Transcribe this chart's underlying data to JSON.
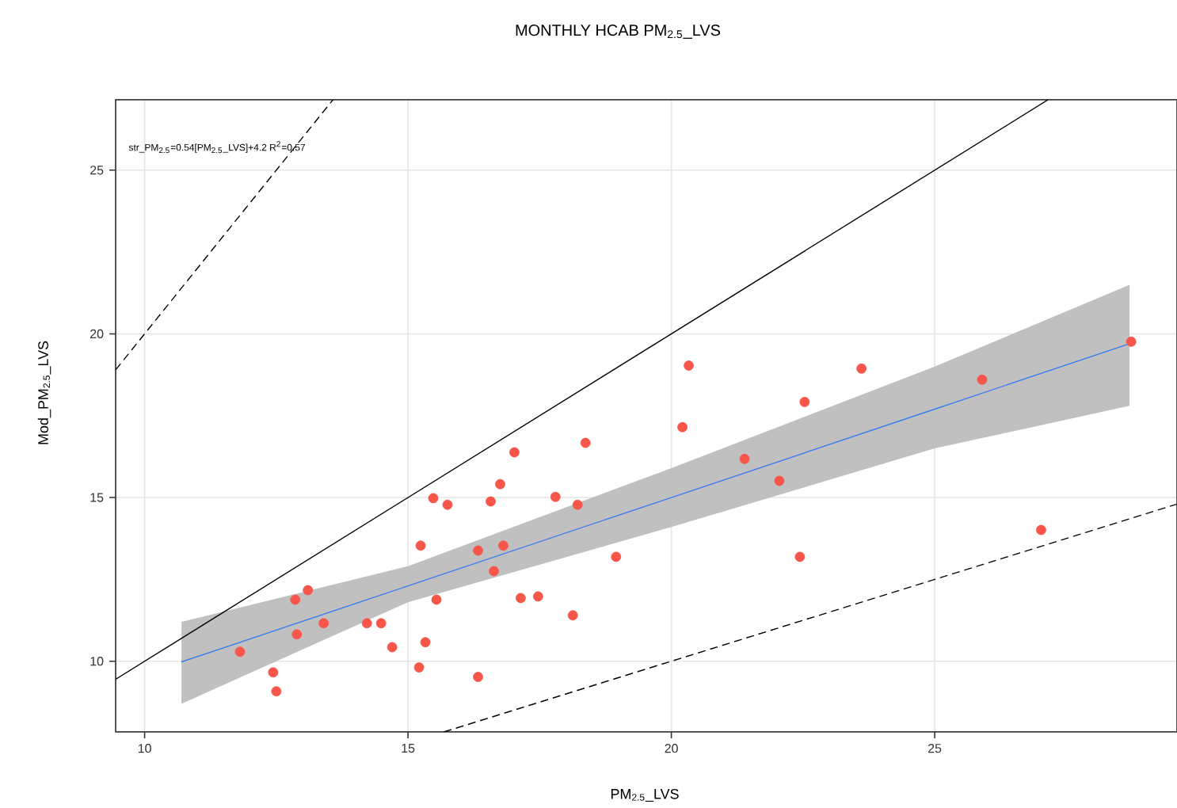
{
  "chart_data": {
    "type": "scatter",
    "title": "MONTHLY  HCAB  PM$_{2.5}$_LVS",
    "xlabel": "PM$_{2.5}$_LVS",
    "ylabel": "Mod_PM$_{2.5}$_LVS",
    "annotations": [
      "str_PM$_{2.5}$=0.54[PM$_{2.5}$_LVS]+4.2 R$^{2}$=0.57"
    ],
    "xlim": [
      9.45,
      29.6
    ],
    "ylim": [
      7.84,
      27.15
    ],
    "xticks": [
      10,
      15,
      20,
      25
    ],
    "yticks": [
      10,
      15,
      20,
      25
    ],
    "grid": true,
    "series": [
      {
        "type": "line",
        "color": "#000000",
        "line_style": "solid",
        "x": [
          9.45,
          27.15
        ],
        "values": [
          9.45,
          27.15
        ]
      },
      {
        "type": "line",
        "color": "#000000",
        "line_style": "dashed",
        "x": [
          9.45,
          13.575
        ],
        "values": [
          18.9,
          27.15
        ]
      },
      {
        "type": "line",
        "color": "#000000",
        "line_style": "dashed",
        "x": [
          15.68,
          29.6
        ],
        "values": [
          7.84,
          14.8
        ]
      },
      {
        "type": "line",
        "color": "#3a7cf0",
        "line_style": "solid",
        "x": [
          10.7,
          15,
          20,
          25,
          28.7
        ],
        "values": [
          9.98,
          12.3,
          15.0,
          17.7,
          19.7
        ],
        "lower": [
          8.7,
          11.8,
          14.1,
          16.5,
          17.8
        ],
        "upper": [
          11.2,
          12.9,
          15.9,
          19.0,
          21.5
        ]
      },
      {
        "color": "#f8564a",
        "marker": "circle",
        "x": [
          11.81,
          12.44,
          12.5,
          12.86,
          12.89,
          13.1,
          13.4,
          14.22,
          14.49,
          14.7,
          15.21,
          15.24,
          15.33,
          15.48,
          15.54,
          15.75,
          16.33,
          16.33,
          16.57,
          16.63,
          16.75,
          16.81,
          17.02,
          17.14,
          17.47,
          17.8,
          18.13,
          18.22,
          18.37,
          18.95,
          20.21,
          20.33,
          21.39,
          22.05,
          22.44,
          22.53,
          23.61,
          25.9,
          27.02,
          28.73
        ],
        "values": [
          10.29,
          9.66,
          9.08,
          11.88,
          10.82,
          12.17,
          11.16,
          11.16,
          11.16,
          10.43,
          9.81,
          13.53,
          10.58,
          14.98,
          11.88,
          14.78,
          9.52,
          13.38,
          14.88,
          12.75,
          15.41,
          13.53,
          16.38,
          11.93,
          11.98,
          15.02,
          11.4,
          14.78,
          16.67,
          13.19,
          17.15,
          19.03,
          16.18,
          15.51,
          13.19,
          17.92,
          18.94,
          18.6,
          14.01,
          19.76
        ]
      }
    ]
  }
}
